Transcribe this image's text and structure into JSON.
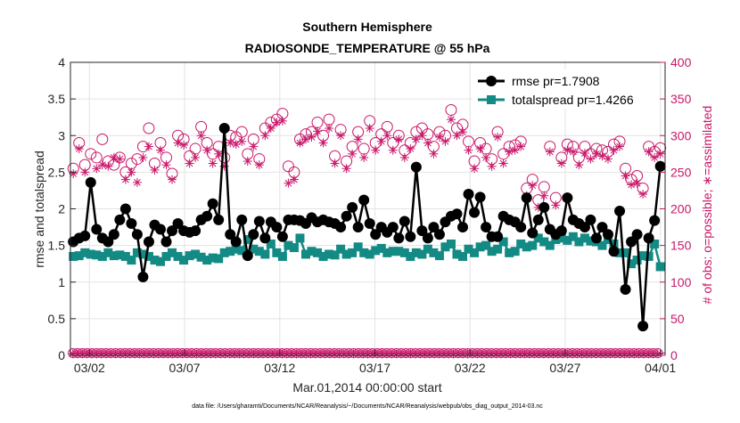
{
  "chart_data": {
    "type": "line",
    "title": "Southern Hemisphere",
    "subtitle": "RADIOSONDE_TEMPERATURE @ 55 hPa",
    "xlabel": "Mar.01,2014 00:00:00 start",
    "ylabel": "rmse and totalspread",
    "ylabel_right": "# of obs: o=possible; ∗=assimilated",
    "footnote": "data file: /Users/gharamti/Documents/NCAR/Reanalysis/~/Documents/NCAR/Reanalysis/webpub/obs_diag_output_2014-03.nc",
    "x_ticks": [
      "03/02",
      "03/07",
      "03/12",
      "03/17",
      "03/22",
      "03/27",
      "04/01"
    ],
    "x_tick_days": [
      1,
      6,
      11,
      16,
      21,
      26,
      31
    ],
    "xlim_days": [
      0,
      31.25
    ],
    "ylim": [
      0,
      4
    ],
    "y_ticks": [
      "0",
      "0.5",
      "1",
      "1.5",
      "2",
      "2.5",
      "3",
      "3.5",
      "4"
    ],
    "ylim_right": [
      0,
      400
    ],
    "y_ticks_right": [
      "0",
      "50",
      "100",
      "150",
      "200",
      "250",
      "300",
      "350",
      "400"
    ],
    "grid": true,
    "legend_position": "top-right",
    "colors": {
      "rmse": "#000000",
      "totalspread": "#138a84",
      "obs": "#c8176a"
    },
    "series": [
      {
        "name": "rmse pr=1.7908",
        "axis": "left",
        "values": [
          1.55,
          1.6,
          1.63,
          2.36,
          1.72,
          1.6,
          1.55,
          1.65,
          1.85,
          2.0,
          1.8,
          1.65,
          1.07,
          1.55,
          1.78,
          1.72,
          1.55,
          1.7,
          1.8,
          1.7,
          1.68,
          1.7,
          1.85,
          1.9,
          2.07,
          1.85,
          3.1,
          1.65,
          1.55,
          1.85,
          1.36,
          1.65,
          1.83,
          1.6,
          1.82,
          1.75,
          1.62,
          1.85,
          1.85,
          1.84,
          1.8,
          1.88,
          1.82,
          1.85,
          1.82,
          1.8,
          1.75,
          1.9,
          2.02,
          1.75,
          2.12,
          1.8,
          1.65,
          1.75,
          1.68,
          1.75,
          1.6,
          1.83,
          1.62,
          2.57,
          1.7,
          1.6,
          1.75,
          1.65,
          1.82,
          1.9,
          1.93,
          1.75,
          2.2,
          1.95,
          2.16,
          1.75,
          1.62,
          1.62,
          1.9,
          1.85,
          1.82,
          1.75,
          2.15,
          1.67,
          1.85,
          2.02,
          1.72,
          1.65,
          1.7,
          2.15,
          1.85,
          1.8,
          1.75,
          1.85,
          1.6,
          1.75,
          1.65,
          1.42,
          1.97,
          0.9,
          1.55,
          1.65,
          0.4,
          1.6,
          1.84,
          2.58
        ]
      },
      {
        "name": "totalspread pr=1.4266",
        "axis": "left",
        "values": [
          1.35,
          1.36,
          1.4,
          1.38,
          1.37,
          1.35,
          1.4,
          1.36,
          1.37,
          1.35,
          1.3,
          1.4,
          1.38,
          1.35,
          1.3,
          1.28,
          1.35,
          1.4,
          1.35,
          1.3,
          1.36,
          1.38,
          1.34,
          1.3,
          1.33,
          1.32,
          1.4,
          1.42,
          1.45,
          1.43,
          1.58,
          1.45,
          1.42,
          1.38,
          1.52,
          1.4,
          1.35,
          1.5,
          1.47,
          1.6,
          1.38,
          1.42,
          1.4,
          1.35,
          1.38,
          1.37,
          1.45,
          1.38,
          1.4,
          1.48,
          1.4,
          1.38,
          1.43,
          1.46,
          1.4,
          1.42,
          1.42,
          1.4,
          1.35,
          1.4,
          1.38,
          1.45,
          1.4,
          1.36,
          1.48,
          1.52,
          1.38,
          1.35,
          1.45,
          1.4,
          1.48,
          1.5,
          1.42,
          1.45,
          1.55,
          1.4,
          1.42,
          1.52,
          1.48,
          1.5,
          1.6,
          1.55,
          1.5,
          1.58,
          1.6,
          1.57,
          1.62,
          1.55,
          1.6,
          1.56,
          1.55,
          1.5,
          1.58,
          1.52,
          1.4,
          1.4,
          1.25,
          1.3,
          1.36,
          1.35,
          1.52,
          1.21
        ]
      },
      {
        "name": "possible",
        "axis": "right",
        "values": [
          255,
          290,
          260,
          275,
          270,
          295,
          265,
          260,
          270,
          250,
          262,
          268,
          285,
          310,
          262,
          290,
          270,
          248,
          300,
          295,
          272,
          282,
          312,
          290,
          275,
          285,
          270,
          300,
          298,
          305,
          275,
          295,
          268,
          310,
          318,
          322,
          330,
          258,
          250,
          295,
          302,
          305,
          318,
          300,
          322,
          272,
          308,
          265,
          285,
          305,
          282,
          320,
          290,
          302,
          312,
          290,
          300,
          280,
          290,
          305,
          310,
          302,
          285,
          305,
          300,
          335,
          310,
          315,
          292,
          265,
          290,
          282,
          268,
          305,
          275,
          285,
          287,
          292,
          228,
          240,
          212,
          230,
          285,
          215,
          270,
          288,
          285,
          270,
          285,
          275,
          282,
          280,
          278,
          288,
          292,
          255,
          240,
          245,
          228,
          285,
          278,
          283
        ],
        "marker": "circle"
      },
      {
        "name": "assimilated",
        "axis": "right",
        "values": [
          248,
          282,
          250,
          235,
          255,
          260,
          258,
          270,
          268,
          240,
          250,
          236,
          270,
          285,
          253,
          280,
          260,
          240,
          290,
          287,
          262,
          270,
          300,
          280,
          262,
          275,
          258,
          290,
          288,
          292,
          265,
          285,
          260,
          300,
          310,
          318,
          320,
          235,
          240,
          290,
          295,
          298,
          306,
          290,
          310,
          262,
          300,
          255,
          275,
          295,
          270,
          310,
          280,
          292,
          300,
          280,
          295,
          270,
          282,
          295,
          300,
          290,
          275,
          298,
          292,
          322,
          300,
          305,
          280,
          255,
          282,
          270,
          258,
          298,
          262,
          278,
          280,
          285,
          218,
          232,
          202,
          218,
          278,
          205,
          262,
          280,
          278,
          260,
          276,
          268,
          275,
          272,
          268,
          280,
          285,
          245,
          233,
          235,
          220,
          278,
          270,
          275
        ],
        "marker": "asterisk"
      }
    ],
    "bottom_possible_value": 3,
    "bottom_assimilated_value": 2
  }
}
